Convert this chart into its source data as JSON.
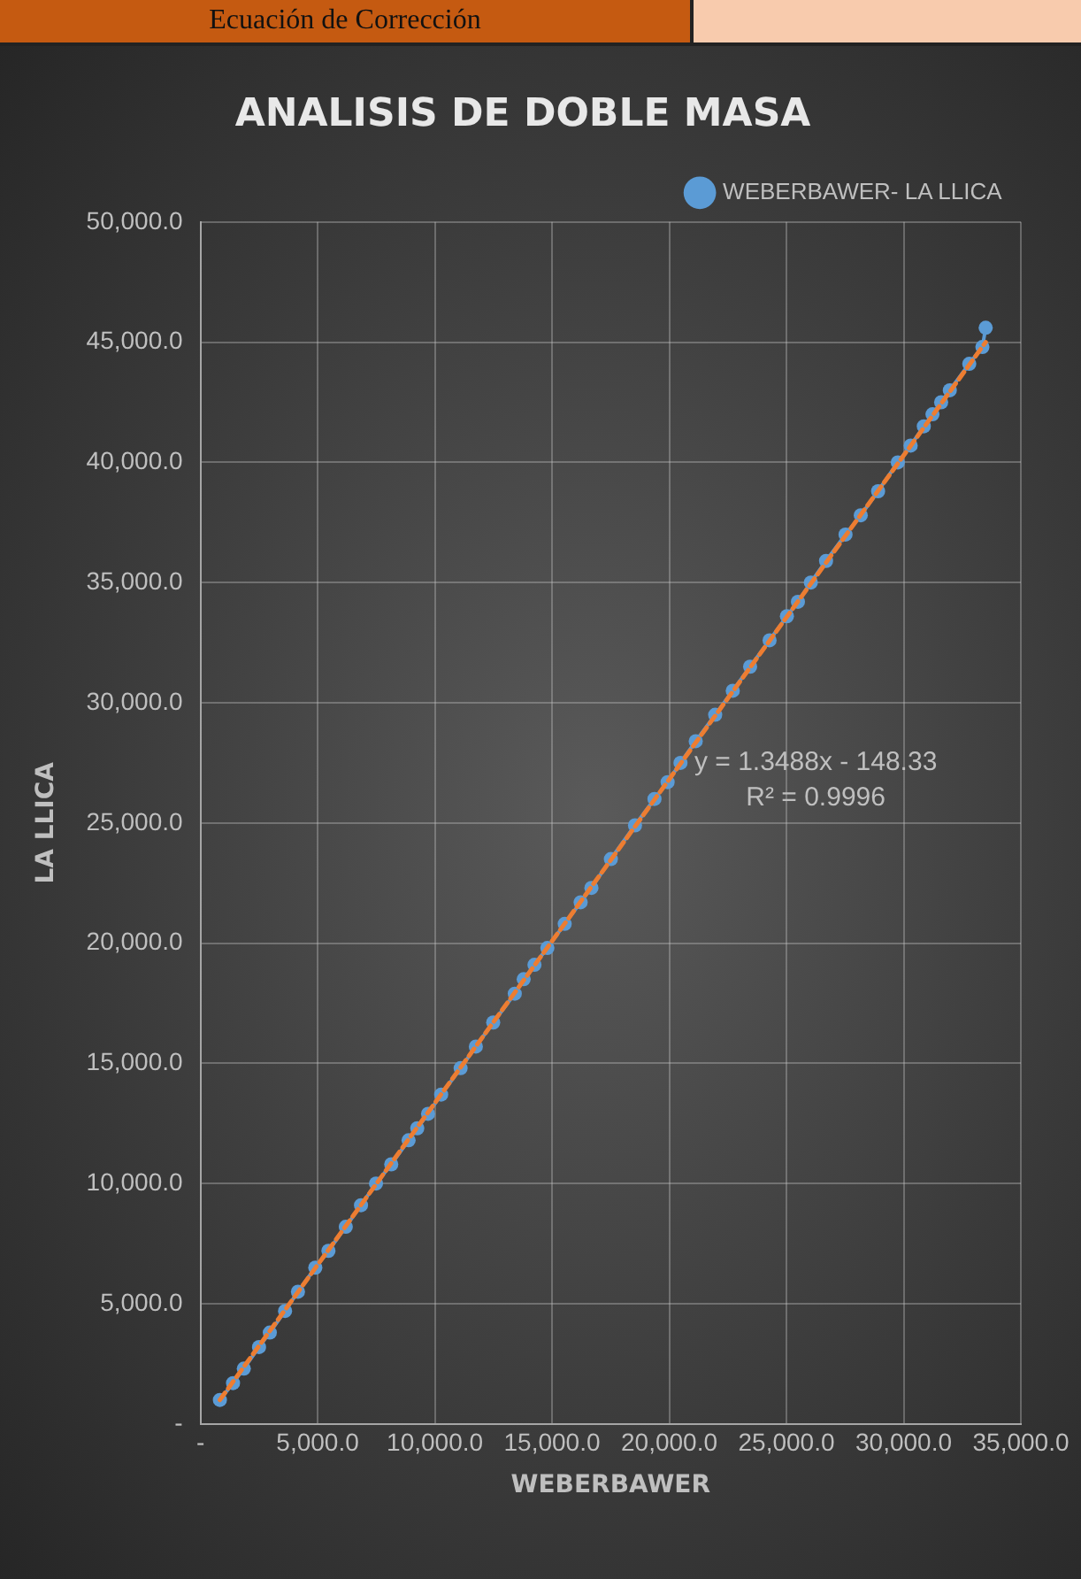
{
  "chart_data": {
    "type": "line",
    "title": "ANALISIS DE DOBLE MASA",
    "xlabel": "WEBERBAWER",
    "ylabel": "LA LLICA",
    "annotations": [
      "Ecuación de Corrección",
      "y = 1.3488x - 148.33",
      "R² = 0.9996"
    ],
    "x": [
      830,
      1390,
      1850,
      2500,
      2960,
      3610,
      4160,
      4900,
      5460,
      6200,
      6850,
      7490,
      8140,
      8880,
      9250,
      9710,
      10270,
      11100,
      11750,
      12490,
      13410,
      13790,
      14250,
      14800,
      15540,
      16220,
      16680,
      17510,
      18540,
      19370,
      19930,
      20480,
      21130,
      21960,
      22710,
      23450,
      24280,
      25020,
      25490,
      26040,
      26690,
      27520,
      28170,
      28910,
      29750,
      30300,
      30860,
      31230,
      31600,
      31970,
      32800,
      33360,
      33500
    ],
    "series": [
      {
        "name": "WEBERBAWER- LA LLICA",
        "color": "#5b9bd5",
        "values": [
          1000,
          1700,
          2300,
          3200,
          3800,
          4700,
          5500,
          6500,
          7200,
          8200,
          9100,
          10000,
          10800,
          11800,
          12300,
          12900,
          13700,
          14800,
          15700,
          16700,
          17900,
          18500,
          19100,
          19800,
          20800,
          21700,
          22300,
          23500,
          24900,
          26000,
          26700,
          27500,
          28400,
          29500,
          30500,
          31500,
          32600,
          33600,
          34200,
          35000,
          35900,
          37000,
          37800,
          38800,
          40000,
          40700,
          41500,
          42000,
          42500,
          43000,
          44100,
          44800,
          45600
        ]
      },
      {
        "type": "line",
        "color": "#ed7d31",
        "line_style": "dashed",
        "marker": "none",
        "x": [
          830,
          33500
        ],
        "values": [
          1000,
          45000
        ]
      }
    ],
    "xlim": [
      0,
      35000
    ],
    "xticks": [
      {
        "value": 0,
        "label": "-"
      },
      {
        "value": 5000,
        "label": "5,000.0"
      },
      {
        "value": 10000,
        "label": "10,000.0"
      },
      {
        "value": 15000,
        "label": "15,000.0"
      },
      {
        "value": 20000,
        "label": "20,000.0"
      },
      {
        "value": 25000,
        "label": "25,000.0"
      },
      {
        "value": 30000,
        "label": "30,000.0"
      },
      {
        "value": 35000,
        "label": "35,000.0"
      }
    ],
    "ylim": [
      0,
      50000
    ],
    "yticks": [
      {
        "value": 0,
        "label": "-"
      },
      {
        "value": 5000,
        "label": "5,000.0"
      },
      {
        "value": 10000,
        "label": "10,000.0"
      },
      {
        "value": 15000,
        "label": "15,000.0"
      },
      {
        "value": 20000,
        "label": "20,000.0"
      },
      {
        "value": 25000,
        "label": "25,000.0"
      },
      {
        "value": 30000,
        "label": "30,000.0"
      },
      {
        "value": 35000,
        "label": "35,000.0"
      },
      {
        "value": 40000,
        "label": "40,000.0"
      },
      {
        "value": 45000,
        "label": "45,000.0"
      },
      {
        "value": 50000,
        "label": "50,000.0"
      }
    ],
    "grid": true,
    "legend": "top right",
    "marker": "circle",
    "line_style": "solid"
  }
}
